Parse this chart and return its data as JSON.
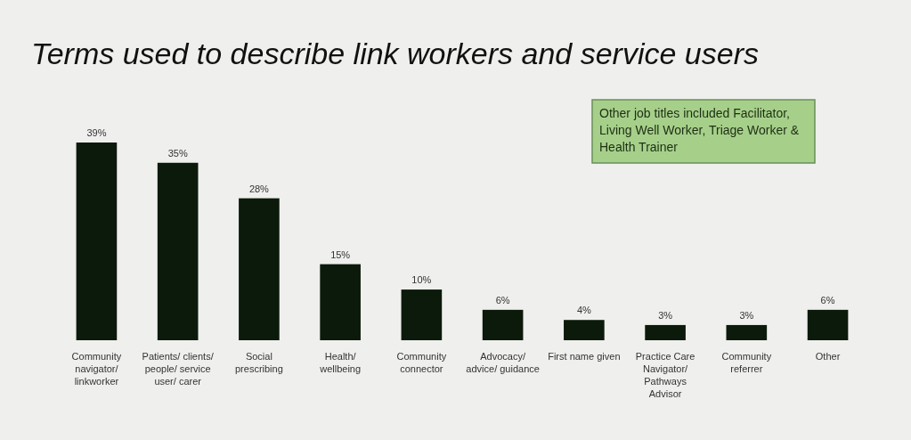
{
  "chart_data": {
    "type": "bar",
    "title": "Terms used to describe link workers and service users",
    "categories": [
      "Community navigator/ linkworker",
      "Patients/ clients/ people/ service user/ carer",
      "Social prescribing",
      "Health/ wellbeing",
      "Community connector",
      "Advocacy/ advice/ guidance",
      "First name given",
      "Practice Care Navigator/ Pathways Advisor",
      "Community referrer",
      "Other"
    ],
    "values": [
      39,
      35,
      28,
      15,
      10,
      6,
      4,
      3,
      3,
      6
    ],
    "value_labels": [
      "39%",
      "35%",
      "28%",
      "15%",
      "10%",
      "6%",
      "4%",
      "3%",
      "3%",
      "6%"
    ],
    "color": "#0b1a0b",
    "annotations": [
      "Other job titles included Facilitator, Living Well Worker, Triage Worker & Health Trainer"
    ]
  }
}
